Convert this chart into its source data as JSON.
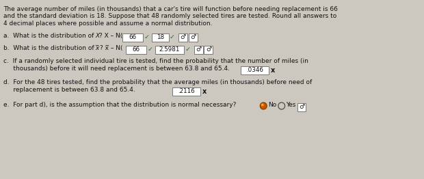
{
  "bg_color": "#cdc8bf",
  "text_color": "#111111",
  "intro_lines": [
    "The average number of miles (in thousands) that a car's tire will function before needing replacement is 66",
    "and the standard deviation is 18. Suppose that 48 randomly selected tires are tested. Round all answers to",
    "4 decimal places where possible and assume a normal distribution."
  ],
  "line_a_text": "a.  What is the distribution of X? X – N(",
  "line_a_box1": "66",
  "line_a_box2": "18",
  "line_b_text": "b.  What is the distribution of į? į – N(",
  "line_b_box1": "66",
  "line_b_box2": "2.5981",
  "line_c1": "c.  If a randomly selected individual tire is tested, find the probability that the number of miles (in",
  "line_c2": "     thousands) before it will need replacement is between 63.8 and 65.4.",
  "line_c_box": ".0346",
  "line_d1": "d.  For the 48 tires tested, find the probability that the average miles (in thousands) before need of",
  "line_d2": "     replacement is between 63.8 and 65.4.",
  "line_d_box": ".2116",
  "line_e": "e.  For part d), is the assumption that the distribution is normal necessary?",
  "check_color": "#2a6a2a",
  "box_edge": "#777777",
  "radio_fill": "#cc5500",
  "radio_edge": "#884400",
  "x_color": "#333333"
}
